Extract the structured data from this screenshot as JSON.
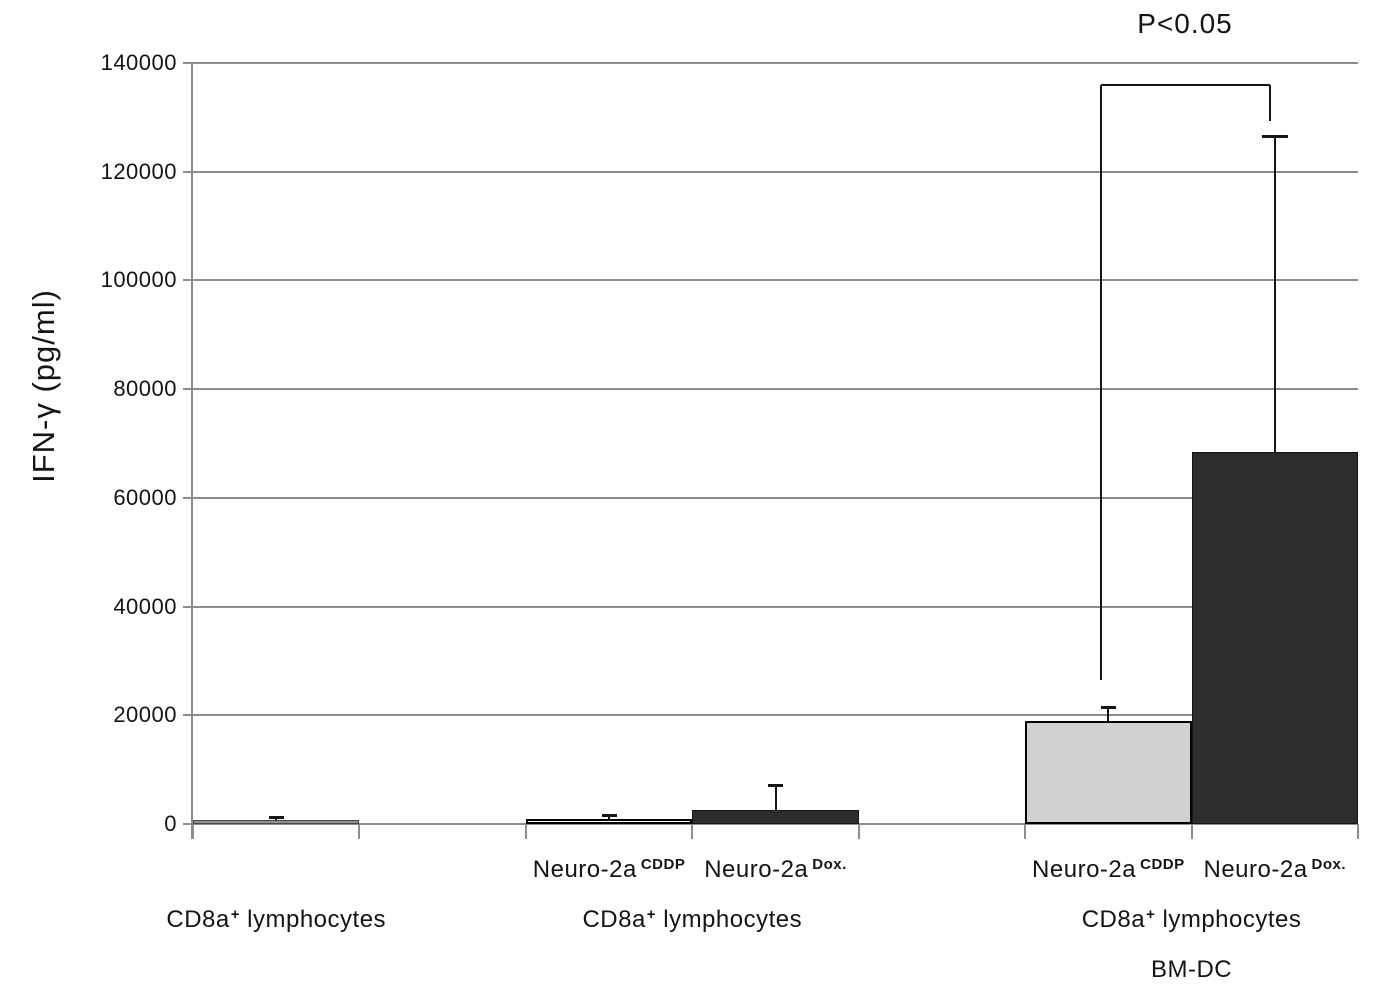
{
  "figure": {
    "background": "#ffffff",
    "text_color": "#141414",
    "grid_color": "#8c8c8c",
    "error_bar_color": "#151515"
  },
  "chart_data": {
    "type": "bar",
    "title": "",
    "xlabel": "",
    "ylabel": "IFN-γ (pg/ml)",
    "ylim": [
      0,
      140000
    ],
    "yticks": [
      0,
      20000,
      40000,
      60000,
      80000,
      100000,
      120000,
      140000
    ],
    "grid": "horizontal-only",
    "legend": "none",
    "slots_total": 7,
    "groups": [
      {
        "label": {
          "pre": "CD8a",
          "sup": "+",
          "post": " lymphocytes"
        },
        "sublabel": "",
        "bars": [
          {
            "slot": 0,
            "name": "CD8a+ lymphocytes alone",
            "value": 800,
            "error_high": 1300,
            "fill": "#8f8f8f",
            "stroke": "#4a4a4a",
            "stroke_w": 1,
            "bar_label": null
          }
        ]
      },
      {
        "label": {
          "pre": "CD8a",
          "sup": "+",
          "post": " lymphocytes"
        },
        "sublabel": "",
        "bars": [
          {
            "slot": 2,
            "name": "Neuro-2a CDDP + CD8a+ lymphocytes",
            "value": 1000,
            "error_high": 1700,
            "fill": "#ffffff",
            "stroke": "#000000",
            "stroke_w": 2,
            "bar_label": {
              "pre": "Neuro-2a",
              "sup": "CDDP"
            }
          },
          {
            "slot": 3,
            "name": "Neuro-2a Dox. + CD8a+ lymphocytes",
            "value": 2600,
            "error_high": 7200,
            "fill": "#2d2d2d",
            "stroke": "#151515",
            "stroke_w": 1,
            "bar_label": {
              "pre": "Neuro-2a",
              "sup": "Dox."
            }
          }
        ]
      },
      {
        "label": {
          "pre": "CD8a",
          "sup": "+",
          "post": " lymphocytes"
        },
        "sublabel": "BM-DC",
        "bars": [
          {
            "slot": 5,
            "name": "Neuro-2a CDDP + CD8a+ lymphocytes + BM-DC",
            "value": 19000,
            "error_high": 21500,
            "fill": "#d1d1d1",
            "stroke": "#000000",
            "stroke_w": 2,
            "bar_label": {
              "pre": "Neuro-2a",
              "sup": "CDDP"
            }
          },
          {
            "slot": 6,
            "name": "Neuro-2a Dox. + CD8a+ lymphocytes + BM-DC",
            "value": 68500,
            "error_high": 126500,
            "fill": "#2d2d2d",
            "stroke": "#151515",
            "stroke_w": 1,
            "bar_label": {
              "pre": "Neuro-2a",
              "sup": "Dox."
            }
          }
        ]
      }
    ],
    "significance_bracket": {
      "from_slot": 5,
      "to_slot": 6,
      "label": "P<0.05"
    }
  }
}
